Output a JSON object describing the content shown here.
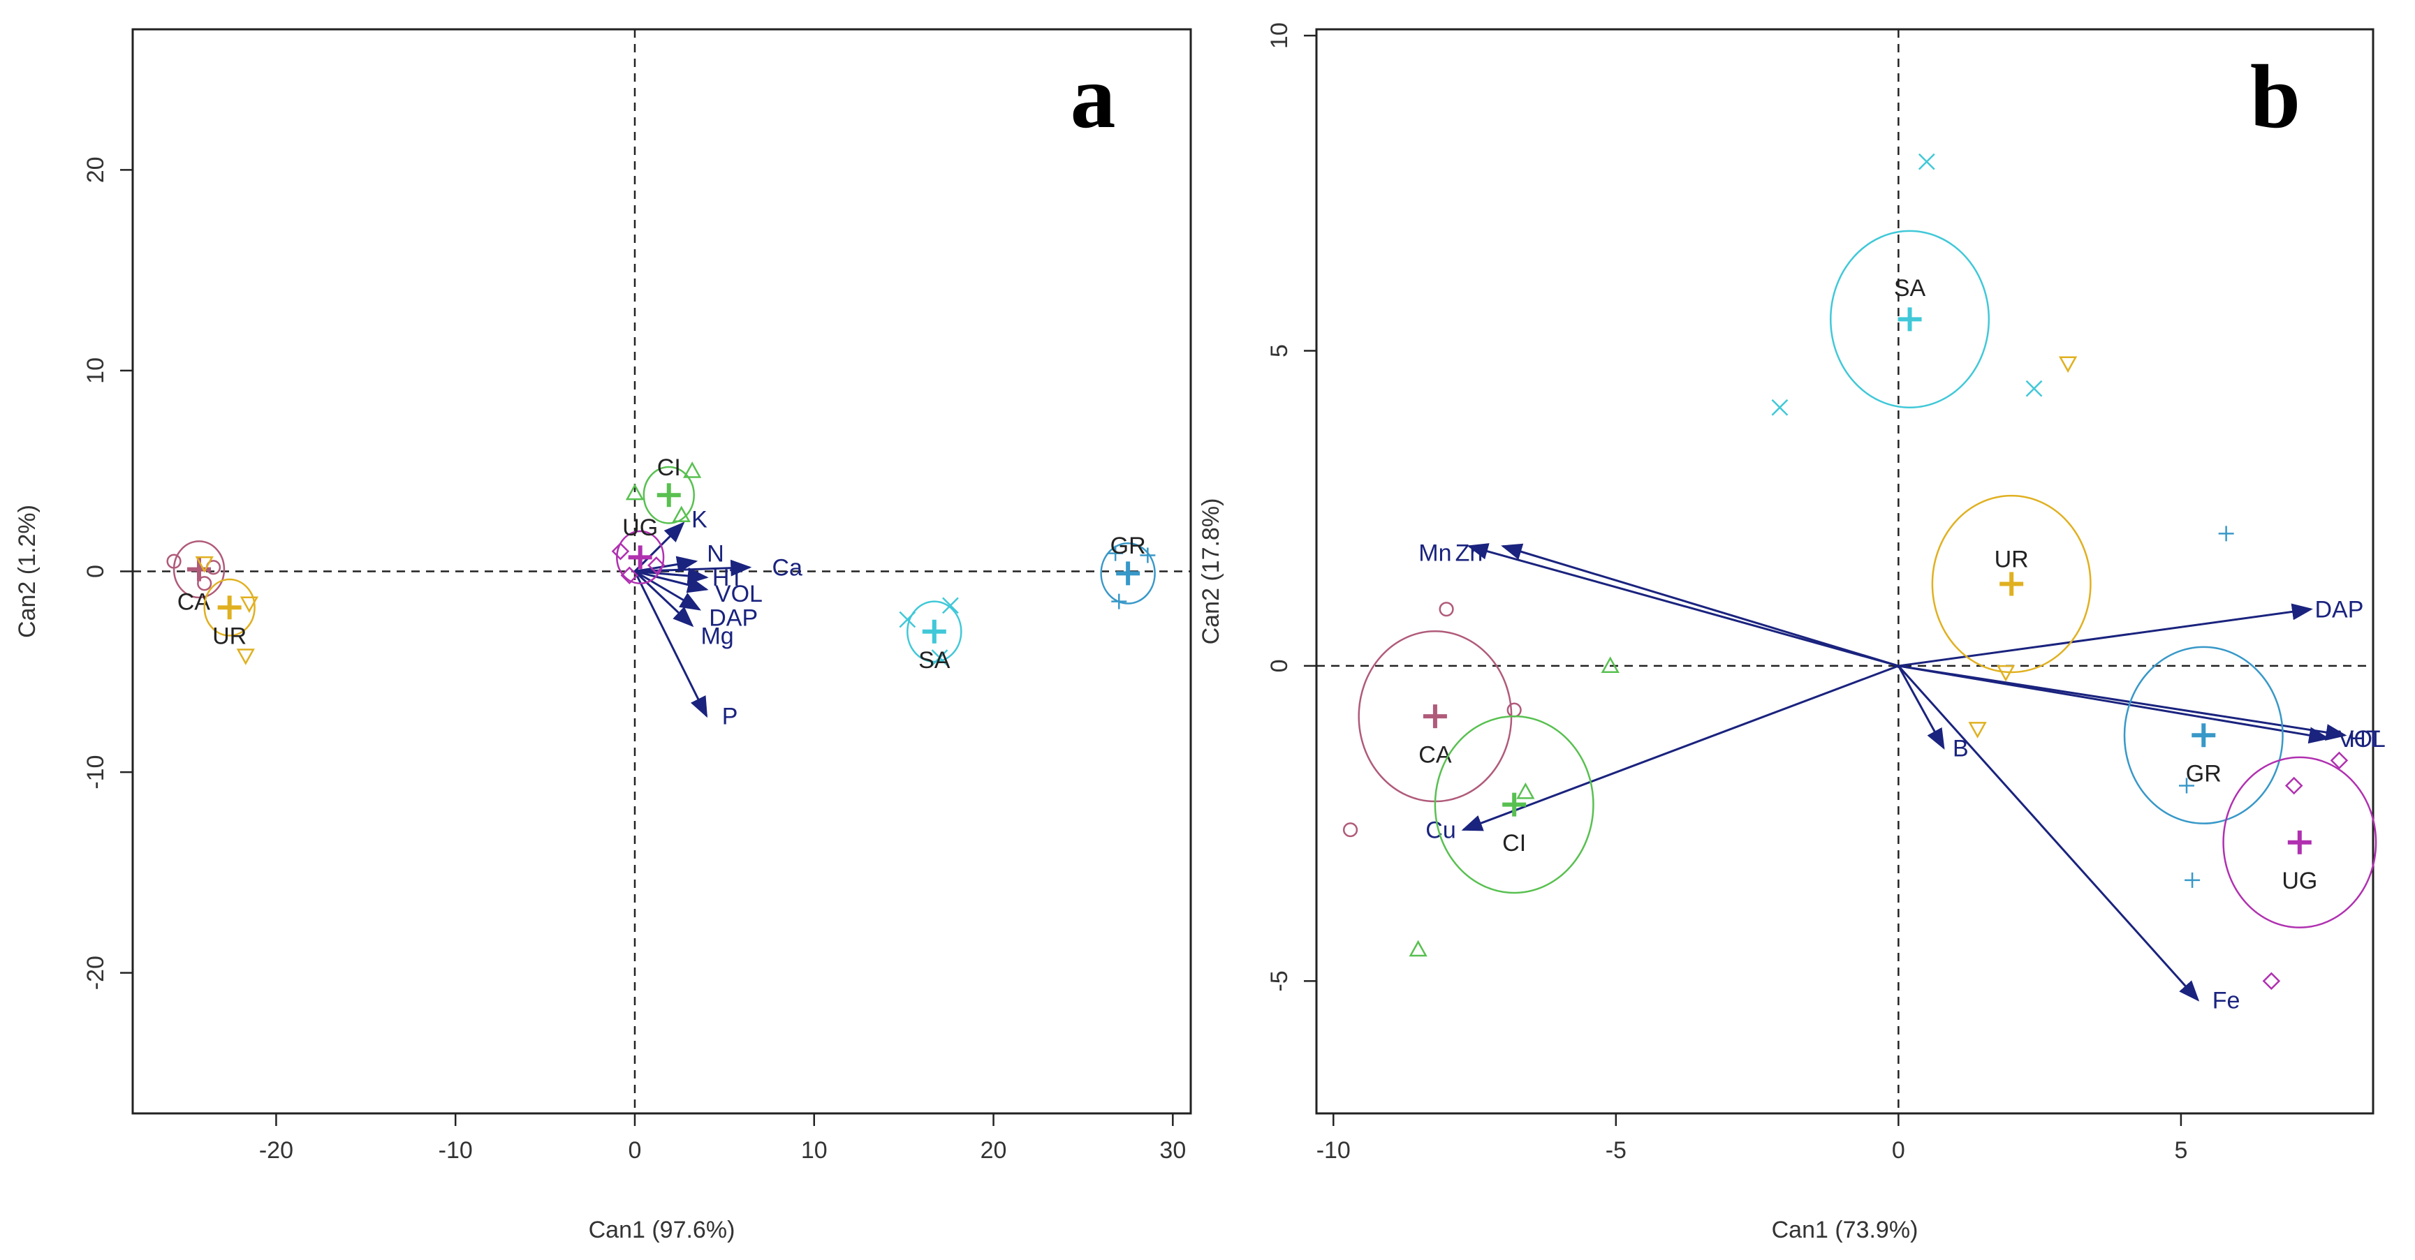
{
  "chart_data": [
    {
      "type": "scatter",
      "panel_label": "a",
      "xlabel": "Can1 (97.6%)",
      "ylabel": "Can2 (1.2%)",
      "xlim": [
        -28,
        31
      ],
      "ylim": [
        -27,
        27
      ],
      "x_ticks": [
        -20,
        -10,
        0,
        10,
        20,
        30
      ],
      "y_ticks": [
        -20,
        -10,
        0,
        10,
        20
      ],
      "groups": [
        {
          "name": "CA",
          "color": "#b05a7a",
          "marker": "circle",
          "center": [
            -24.3,
            0.1
          ],
          "radius": 1.4,
          "label_pos": [
            -24.6,
            -1.5
          ],
          "points": [
            [
              -25.7,
              0.5
            ],
            [
              -24.0,
              -0.6
            ],
            [
              -23.5,
              0.2
            ]
          ]
        },
        {
          "name": "UR",
          "color": "#e0b020",
          "marker": "tri-down",
          "center": [
            -22.6,
            -1.8
          ],
          "radius": 1.4,
          "label_pos": [
            -22.6,
            -3.2
          ],
          "points": [
            [
              -24.0,
              0.4
            ],
            [
              -21.7,
              -4.2
            ],
            [
              -21.5,
              -1.6
            ]
          ]
        },
        {
          "name": "CI",
          "color": "#58c050",
          "marker": "tri-up",
          "center": [
            1.9,
            3.8
          ],
          "radius": 1.4,
          "label_pos": [
            1.9,
            5.2
          ],
          "points": [
            [
              0.0,
              3.9
            ],
            [
              3.2,
              5.0
            ],
            [
              2.6,
              2.8
            ]
          ]
        },
        {
          "name": "UG",
          "color": "#b030b0",
          "marker": "diamond",
          "center": [
            0.3,
            0.7
          ],
          "radius": 1.3,
          "label_pos": [
            0.3,
            2.2
          ],
          "points": [
            [
              -0.8,
              1.0
            ],
            [
              1.2,
              0.3
            ],
            [
              -0.3,
              -0.2
            ]
          ]
        },
        {
          "name": "SA",
          "color": "#40c8d8",
          "marker": "x",
          "center": [
            16.7,
            -3.0
          ],
          "radius": 1.5,
          "label_pos": [
            16.7,
            -4.4
          ],
          "points": [
            [
              15.2,
              -2.4
            ],
            [
              17.6,
              -1.7
            ],
            [
              17.0,
              -4.3
            ]
          ]
        },
        {
          "name": "GR",
          "color": "#3898c8",
          "marker": "plus",
          "center": [
            27.5,
            -0.1
          ],
          "radius": 1.5,
          "label_pos": [
            27.5,
            1.3
          ],
          "points": [
            [
              26.8,
              0.9
            ],
            [
              28.6,
              0.8
            ],
            [
              27.0,
              -1.5
            ]
          ]
        }
      ],
      "vectors": [
        {
          "name": "K",
          "end": [
            2.7,
            2.4
          ],
          "label_pos": [
            3.6,
            2.6
          ]
        },
        {
          "name": "N",
          "end": [
            3.4,
            0.5
          ],
          "label_pos": [
            4.5,
            0.9
          ]
        },
        {
          "name": "Ca",
          "end": [
            6.4,
            0.2
          ],
          "label_pos": [
            8.5,
            0.2
          ]
        },
        {
          "name": "HT",
          "end": [
            4.0,
            -0.3
          ],
          "label_pos": [
            5.2,
            -0.3
          ]
        },
        {
          "name": "VOL",
          "end": [
            4.0,
            -0.9
          ],
          "label_pos": [
            5.8,
            -1.1
          ]
        },
        {
          "name": "DAP",
          "end": [
            3.6,
            -1.9
          ],
          "label_pos": [
            5.5,
            -2.3
          ]
        },
        {
          "name": "Mg",
          "end": [
            3.2,
            -2.7
          ],
          "label_pos": [
            4.6,
            -3.2
          ]
        },
        {
          "name": "P",
          "end": [
            4.0,
            -7.2
          ],
          "label_pos": [
            5.3,
            -7.2
          ]
        }
      ]
    },
    {
      "type": "scatter",
      "panel_label": "b",
      "xlabel": "Can1 (73.9%)",
      "ylabel": "Can2 (17.8%)",
      "xlim": [
        -10.3,
        8.4
      ],
      "ylim": [
        -7.1,
        10.1
      ],
      "x_ticks": [
        -10,
        -5,
        0,
        5
      ],
      "y_ticks": [
        -5,
        0,
        5,
        10
      ],
      "groups": [
        {
          "name": "SA",
          "color": "#40c8d8",
          "marker": "x",
          "center": [
            0.2,
            5.5
          ],
          "radius": 1.4,
          "label_pos": [
            0.2,
            6.0
          ],
          "points": [
            [
              0.5,
              8.0
            ],
            [
              -2.1,
              4.1
            ],
            [
              2.4,
              4.4
            ]
          ]
        },
        {
          "name": "UR",
          "color": "#e0b020",
          "marker": "tri-down",
          "center": [
            2.0,
            1.3
          ],
          "radius": 1.4,
          "label_pos": [
            2.0,
            1.7
          ],
          "points": [
            [
              3.0,
              4.8
            ],
            [
              1.4,
              -1.0
            ],
            [
              1.9,
              -0.1
            ]
          ]
        },
        {
          "name": "CA",
          "color": "#b05a7a",
          "marker": "circle",
          "center": [
            -8.2,
            -0.8
          ],
          "radius": 1.35,
          "label_pos": [
            -8.2,
            -1.4
          ],
          "points": [
            [
              -8.0,
              0.9
            ],
            [
              -9.7,
              -2.6
            ],
            [
              -6.8,
              -0.7
            ]
          ]
        },
        {
          "name": "CI",
          "color": "#58c050",
          "marker": "tri-up",
          "center": [
            -6.8,
            -2.2
          ],
          "radius": 1.4,
          "label_pos": [
            -6.8,
            -2.8
          ],
          "points": [
            [
              -5.1,
              0.0
            ],
            [
              -6.6,
              -2.0
            ],
            [
              -8.5,
              -4.5
            ]
          ]
        },
        {
          "name": "GR",
          "color": "#3898c8",
          "marker": "plus",
          "center": [
            5.4,
            -1.1
          ],
          "radius": 1.4,
          "label_pos": [
            5.4,
            -1.7
          ],
          "points": [
            [
              5.8,
              2.1
            ],
            [
              5.1,
              -1.9
            ],
            [
              5.2,
              -3.4
            ]
          ]
        },
        {
          "name": "UG",
          "color": "#b030b0",
          "marker": "diamond",
          "center": [
            7.1,
            -2.8
          ],
          "radius": 1.35,
          "label_pos": [
            7.1,
            -3.4
          ],
          "points": [
            [
              7.8,
              -1.5
            ],
            [
              7.0,
              -1.9
            ],
            [
              6.6,
              -5.0
            ]
          ]
        }
      ],
      "vectors": [
        {
          "name": "Mn",
          "end": [
            -7.6,
            1.9
          ],
          "label_pos": [
            -8.2,
            1.8
          ]
        },
        {
          "name": "Zn",
          "end": [
            -7.0,
            1.9
          ],
          "label_pos": [
            -7.6,
            1.8
          ]
        },
        {
          "name": "Cu",
          "end": [
            -7.7,
            -2.6
          ],
          "label_pos": [
            -8.1,
            -2.6
          ]
        },
        {
          "name": "B",
          "end": [
            0.8,
            -1.3
          ],
          "label_pos": [
            1.1,
            -1.3
          ]
        },
        {
          "name": "DAP",
          "end": [
            7.3,
            0.9
          ],
          "label_pos": [
            7.8,
            0.9
          ]
        },
        {
          "name": "VOL",
          "end": [
            7.9,
            -1.1
          ],
          "label_pos": [
            8.2,
            -1.15
          ]
        },
        {
          "name": "HT",
          "end": [
            7.6,
            -1.15
          ],
          "label_pos": [
            8.25,
            -1.15
          ]
        },
        {
          "name": "Fe",
          "end": [
            5.3,
            -5.3
          ],
          "label_pos": [
            5.8,
            -5.3
          ]
        }
      ]
    }
  ]
}
